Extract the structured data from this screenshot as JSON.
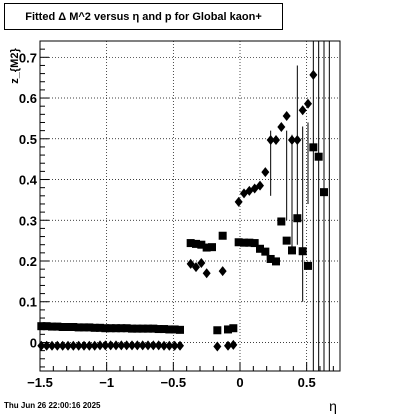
{
  "chart_data": {
    "type": "scatter",
    "title": "Fitted Δ M^2 versus η and p for Global kaon+",
    "xlabel": "η",
    "ylabel": "z_{M2}",
    "xlim": [
      -1.5,
      0.75
    ],
    "ylim": [
      -0.07,
      0.74
    ],
    "x_ticks": [
      "−1.5",
      "−1",
      "−0.5",
      "0",
      "0.5"
    ],
    "x_tick_values": [
      -1.5,
      -1,
      -0.5,
      0,
      0.5
    ],
    "y_ticks": [
      "0",
      "0.1",
      "0.2",
      "0.3",
      "0.4",
      "0.5",
      "0.6",
      "0.7"
    ],
    "y_tick_values": [
      0,
      0.1,
      0.2,
      0.3,
      0.4,
      0.5,
      0.6,
      0.7
    ],
    "grid": true,
    "series": [
      {
        "marker": "square",
        "points": [
          [
            -1.49,
            0.04
          ],
          [
            -1.45,
            0.04
          ],
          [
            -1.41,
            0.039
          ],
          [
            -1.37,
            0.039
          ],
          [
            -1.33,
            0.038
          ],
          [
            -1.29,
            0.038
          ],
          [
            -1.25,
            0.038
          ],
          [
            -1.21,
            0.037
          ],
          [
            -1.17,
            0.037
          ],
          [
            -1.13,
            0.037
          ],
          [
            -1.09,
            0.036
          ],
          [
            -1.05,
            0.036
          ],
          [
            -1.01,
            0.035
          ],
          [
            -0.97,
            0.035
          ],
          [
            -0.93,
            0.035
          ],
          [
            -0.89,
            0.035
          ],
          [
            -0.85,
            0.035
          ],
          [
            -0.81,
            0.034
          ],
          [
            -0.77,
            0.034
          ],
          [
            -0.73,
            0.034
          ],
          [
            -0.69,
            0.034
          ],
          [
            -0.65,
            0.034
          ],
          [
            -0.61,
            0.033
          ],
          [
            -0.57,
            0.033
          ],
          [
            -0.53,
            0.032
          ],
          [
            -0.49,
            0.032
          ],
          [
            -0.45,
            0.031
          ],
          [
            -0.37,
            0.244
          ],
          [
            -0.33,
            0.242
          ],
          [
            -0.29,
            0.24
          ],
          [
            -0.25,
            0.233
          ],
          [
            -0.21,
            0.234
          ],
          [
            -0.17,
            0.03
          ],
          [
            -0.13,
            0.262
          ],
          [
            -0.09,
            0.032
          ],
          [
            -0.05,
            0.035
          ],
          [
            -0.01,
            0.246
          ],
          [
            0.03,
            0.245
          ],
          [
            0.07,
            0.245
          ],
          [
            0.11,
            0.244
          ],
          [
            0.15,
            0.23
          ],
          [
            0.19,
            0.223
          ],
          [
            0.23,
            0.205
          ],
          [
            0.27,
            0.199
          ],
          [
            0.31,
            0.297
          ],
          [
            0.35,
            0.25
          ],
          [
            0.39,
            0.226
          ],
          [
            0.43,
            0.305
          ],
          [
            0.47,
            0.224
          ],
          [
            0.51,
            0.188
          ],
          [
            0.55,
            0.479
          ],
          [
            0.59,
            0.456
          ],
          [
            0.63,
            0.369
          ]
        ]
      },
      {
        "marker": "diamond",
        "points": [
          [
            -1.49,
            -0.008
          ],
          [
            -1.45,
            -0.008
          ],
          [
            -1.41,
            -0.008
          ],
          [
            -1.37,
            -0.008
          ],
          [
            -1.33,
            -0.008
          ],
          [
            -1.29,
            -0.008
          ],
          [
            -1.25,
            -0.008
          ],
          [
            -1.21,
            -0.008
          ],
          [
            -1.17,
            -0.008
          ],
          [
            -1.13,
            -0.008
          ],
          [
            -1.09,
            -0.008
          ],
          [
            -1.05,
            -0.007
          ],
          [
            -1.01,
            -0.007
          ],
          [
            -0.97,
            -0.007
          ],
          [
            -0.93,
            -0.007
          ],
          [
            -0.89,
            -0.007
          ],
          [
            -0.85,
            -0.007
          ],
          [
            -0.81,
            -0.007
          ],
          [
            -0.77,
            -0.007
          ],
          [
            -0.73,
            -0.007
          ],
          [
            -0.69,
            -0.007
          ],
          [
            -0.65,
            -0.007
          ],
          [
            -0.61,
            -0.007
          ],
          [
            -0.57,
            -0.008
          ],
          [
            -0.53,
            -0.008
          ],
          [
            -0.49,
            -0.008
          ],
          [
            -0.45,
            -0.008
          ],
          [
            -0.37,
            0.193
          ],
          [
            -0.33,
            0.185
          ],
          [
            -0.29,
            0.195
          ],
          [
            -0.25,
            0.17
          ],
          [
            -0.17,
            -0.01
          ],
          [
            -0.13,
            0.175
          ],
          [
            -0.09,
            -0.008
          ],
          [
            -0.05,
            -0.006
          ],
          [
            -0.01,
            0.345
          ],
          [
            0.03,
            0.366
          ],
          [
            0.07,
            0.372
          ],
          [
            0.11,
            0.378
          ],
          [
            0.15,
            0.385
          ],
          [
            0.19,
            0.418
          ],
          [
            0.23,
            0.497
          ],
          [
            0.27,
            0.497
          ],
          [
            0.31,
            0.529
          ],
          [
            0.35,
            0.556
          ],
          [
            0.39,
            0.497
          ],
          [
            0.43,
            0.497
          ],
          [
            0.47,
            0.57
          ],
          [
            0.51,
            0.586
          ],
          [
            0.55,
            0.657
          ]
        ]
      }
    ],
    "error_bars": [
      {
        "x": 0.23,
        "lo": 0.36,
        "hi": 0.52
      },
      {
        "x": 0.35,
        "lo": 0.3,
        "hi": 0.52
      },
      {
        "x": 0.39,
        "lo": 0.23,
        "hi": 0.51
      },
      {
        "x": 0.43,
        "lo": 0.24,
        "hi": 0.68
      },
      {
        "x": 0.47,
        "lo": 0.1,
        "hi": 0.53
      },
      {
        "x": 0.51,
        "lo": 0.34,
        "hi": 0.54
      },
      {
        "x": 0.55,
        "lo": -0.07,
        "hi": 0.74
      },
      {
        "x": 0.59,
        "lo": -0.07,
        "hi": 0.74
      },
      {
        "x": 0.63,
        "lo": -0.07,
        "hi": 0.74
      },
      {
        "x": 0.67,
        "lo": -0.07,
        "hi": 0.74
      }
    ]
  },
  "timestamp": "Thu Jun 26 22:00:16 2025"
}
